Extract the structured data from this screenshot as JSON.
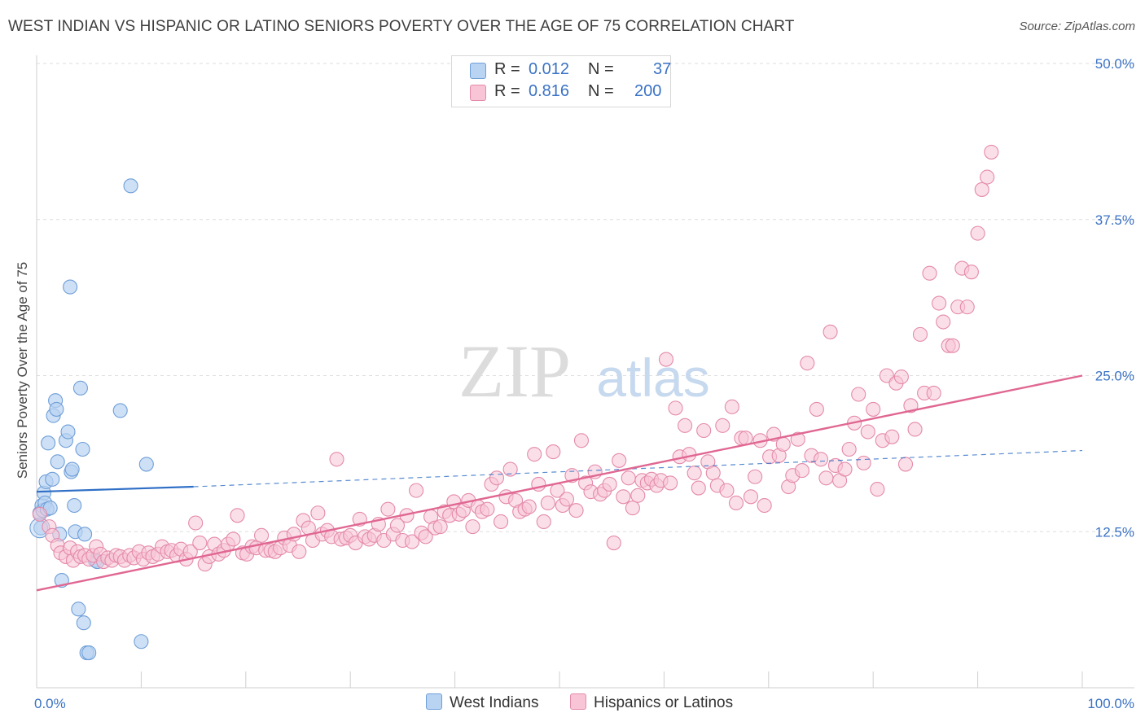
{
  "header": {
    "title": "WEST INDIAN VS HISPANIC OR LATINO SENIORS POVERTY OVER THE AGE OF 75 CORRELATION CHART",
    "source": "Source: ZipAtlas.com"
  },
  "watermark": {
    "zip": "ZIP",
    "atlas": "atlas"
  },
  "legend_top": {
    "rows": [
      {
        "r_label": "R =",
        "r_value": "0.012",
        "n_label": "N =",
        "n_value": "37"
      },
      {
        "r_label": "R =",
        "r_value": "0.816",
        "n_label": "N =",
        "n_value": "200"
      }
    ]
  },
  "chart_data": {
    "type": "scatter",
    "ylabel": "Seniors Poverty Over the Age of 75",
    "xlabel": "",
    "xlim": [
      0,
      100
    ],
    "ylim": [
      0,
      50
    ],
    "x_tick_labels": [
      "0.0%",
      "100.0%"
    ],
    "y_ticks": [
      12.5,
      25.0,
      37.5,
      50.0
    ],
    "y_tick_labels": [
      "12.5%",
      "25.0%",
      "37.5%",
      "50.0%"
    ],
    "grid": true,
    "legend_placement": "bottom-center",
    "colors": {
      "west_indians_fill": "#b9d3f2",
      "west_indians_stroke": "#6f9fd8",
      "west_indians_line": "#2f6fc6",
      "hispanics_fill": "#f8c5d6",
      "hispanics_stroke": "#e48aaa",
      "hispanics_line": "#e06792",
      "axis_label": "#3a72c4"
    },
    "series": [
      {
        "name": "West Indians",
        "r": 0.012,
        "n": 37,
        "trend": {
          "x0": 0,
          "y0": 15.7,
          "x1": 15,
          "y1": 16.1,
          "dashed_to_x": 100,
          "dashed_y1": 19.0
        },
        "points": [
          [
            0.3,
            14.0
          ],
          [
            0.4,
            12.8
          ],
          [
            0.5,
            14.6
          ],
          [
            0.6,
            14.2
          ],
          [
            0.7,
            15.6
          ],
          [
            0.8,
            14.8
          ],
          [
            0.9,
            16.5
          ],
          [
            1.0,
            14.3
          ],
          [
            1.1,
            19.6
          ],
          [
            1.3,
            14.4
          ],
          [
            1.5,
            16.7
          ],
          [
            1.6,
            21.8
          ],
          [
            1.8,
            23.0
          ],
          [
            1.9,
            22.3
          ],
          [
            2.0,
            18.1
          ],
          [
            2.2,
            12.3
          ],
          [
            2.4,
            8.6
          ],
          [
            2.8,
            19.8
          ],
          [
            3.0,
            20.5
          ],
          [
            3.3,
            17.3
          ],
          [
            3.4,
            17.5
          ],
          [
            3.2,
            32.1
          ],
          [
            3.6,
            14.6
          ],
          [
            3.7,
            12.5
          ],
          [
            4.0,
            6.3
          ],
          [
            4.2,
            24.0
          ],
          [
            4.4,
            19.1
          ],
          [
            4.5,
            5.2
          ],
          [
            4.6,
            12.3
          ],
          [
            4.8,
            2.8
          ],
          [
            5.0,
            2.8
          ],
          [
            5.6,
            10.2
          ],
          [
            5.8,
            10.1
          ],
          [
            8.0,
            22.2
          ],
          [
            9.0,
            40.2
          ],
          [
            10.0,
            3.7
          ],
          [
            10.5,
            17.9
          ]
        ]
      },
      {
        "name": "Hispanics or Latinos",
        "r": 0.816,
        "n": 200,
        "trend": {
          "x0": 0,
          "y0": 7.8,
          "x1": 100,
          "y1": 25.0
        },
        "points": [
          [
            0.3,
            13.9
          ],
          [
            1.2,
            12.9
          ],
          [
            1.5,
            12.2
          ],
          [
            2.0,
            11.4
          ],
          [
            2.3,
            10.8
          ],
          [
            2.8,
            10.5
          ],
          [
            3.2,
            11.2
          ],
          [
            3.5,
            10.2
          ],
          [
            3.9,
            10.9
          ],
          [
            4.2,
            10.5
          ],
          [
            4.6,
            10.6
          ],
          [
            5.0,
            10.3
          ],
          [
            5.4,
            10.6
          ],
          [
            5.7,
            11.3
          ],
          [
            6.1,
            10.7
          ],
          [
            6.4,
            10.1
          ],
          [
            6.8,
            10.4
          ],
          [
            7.2,
            10.2
          ],
          [
            7.6,
            10.6
          ],
          [
            8.0,
            10.5
          ],
          [
            8.4,
            10.2
          ],
          [
            8.9,
            10.6
          ],
          [
            9.3,
            10.4
          ],
          [
            9.8,
            10.9
          ],
          [
            10.2,
            10.3
          ],
          [
            10.7,
            10.8
          ],
          [
            11.1,
            10.5
          ],
          [
            11.6,
            10.7
          ],
          [
            12.0,
            11.3
          ],
          [
            12.5,
            10.9
          ],
          [
            12.9,
            11.0
          ],
          [
            13.4,
            10.6
          ],
          [
            13.8,
            11.1
          ],
          [
            14.3,
            10.3
          ],
          [
            14.7,
            10.9
          ],
          [
            15.2,
            13.2
          ],
          [
            15.6,
            11.6
          ],
          [
            16.1,
            9.9
          ],
          [
            16.5,
            10.5
          ],
          [
            17.0,
            11.5
          ],
          [
            17.4,
            10.7
          ],
          [
            17.9,
            11.0
          ],
          [
            18.3,
            11.5
          ],
          [
            18.8,
            11.9
          ],
          [
            19.2,
            13.8
          ],
          [
            19.7,
            10.8
          ],
          [
            20.1,
            10.7
          ],
          [
            20.6,
            11.3
          ],
          [
            21.0,
            11.2
          ],
          [
            21.5,
            12.2
          ],
          [
            21.9,
            11.0
          ],
          [
            22.4,
            11.0
          ],
          [
            22.8,
            10.9
          ],
          [
            23.3,
            11.2
          ],
          [
            23.7,
            12.0
          ],
          [
            24.2,
            11.4
          ],
          [
            24.6,
            12.3
          ],
          [
            25.1,
            10.9
          ],
          [
            25.5,
            13.4
          ],
          [
            26.0,
            12.8
          ],
          [
            26.4,
            11.8
          ],
          [
            26.9,
            14.0
          ],
          [
            27.3,
            12.3
          ],
          [
            27.8,
            12.6
          ],
          [
            28.2,
            12.1
          ],
          [
            28.7,
            18.3
          ],
          [
            29.1,
            11.9
          ],
          [
            29.6,
            12.0
          ],
          [
            30.0,
            12.2
          ],
          [
            30.5,
            11.6
          ],
          [
            30.9,
            13.5
          ],
          [
            31.4,
            12.1
          ],
          [
            31.8,
            11.9
          ],
          [
            32.3,
            12.2
          ],
          [
            32.7,
            13.1
          ],
          [
            33.2,
            11.8
          ],
          [
            33.6,
            14.3
          ],
          [
            34.1,
            12.3
          ],
          [
            34.5,
            13.0
          ],
          [
            35.0,
            11.8
          ],
          [
            35.4,
            13.8
          ],
          [
            35.9,
            11.7
          ],
          [
            36.3,
            15.8
          ],
          [
            36.8,
            12.4
          ],
          [
            37.2,
            12.1
          ],
          [
            37.7,
            13.7
          ],
          [
            38.1,
            12.8
          ],
          [
            38.6,
            12.9
          ],
          [
            39.0,
            14.1
          ],
          [
            39.5,
            13.8
          ],
          [
            39.9,
            14.9
          ],
          [
            40.4,
            13.9
          ],
          [
            40.8,
            14.2
          ],
          [
            41.3,
            15.0
          ],
          [
            41.7,
            12.9
          ],
          [
            42.2,
            14.5
          ],
          [
            42.6,
            14.1
          ],
          [
            43.1,
            14.3
          ],
          [
            43.5,
            16.3
          ],
          [
            44.0,
            16.8
          ],
          [
            44.4,
            13.3
          ],
          [
            44.9,
            15.3
          ],
          [
            45.3,
            17.5
          ],
          [
            45.8,
            15.0
          ],
          [
            46.2,
            14.1
          ],
          [
            46.7,
            14.3
          ],
          [
            47.1,
            14.5
          ],
          [
            47.6,
            18.7
          ],
          [
            48.0,
            16.3
          ],
          [
            48.5,
            13.3
          ],
          [
            48.9,
            14.8
          ],
          [
            49.4,
            18.9
          ],
          [
            49.8,
            15.8
          ],
          [
            50.3,
            14.6
          ],
          [
            50.7,
            15.1
          ],
          [
            51.2,
            17.0
          ],
          [
            51.6,
            14.2
          ],
          [
            52.1,
            19.8
          ],
          [
            52.5,
            16.4
          ],
          [
            53.0,
            15.7
          ],
          [
            53.4,
            17.3
          ],
          [
            53.9,
            15.5
          ],
          [
            54.3,
            15.8
          ],
          [
            54.8,
            16.3
          ],
          [
            55.2,
            11.6
          ],
          [
            55.7,
            18.2
          ],
          [
            56.1,
            15.3
          ],
          [
            56.6,
            16.8
          ],
          [
            57.0,
            14.4
          ],
          [
            57.5,
            15.4
          ],
          [
            57.9,
            16.6
          ],
          [
            58.4,
            16.4
          ],
          [
            58.8,
            16.7
          ],
          [
            59.3,
            16.2
          ],
          [
            59.7,
            16.6
          ],
          [
            60.2,
            26.3
          ],
          [
            60.6,
            16.4
          ],
          [
            61.1,
            22.4
          ],
          [
            61.5,
            18.5
          ],
          [
            62.0,
            21.0
          ],
          [
            62.4,
            18.7
          ],
          [
            62.9,
            17.2
          ],
          [
            63.3,
            16.0
          ],
          [
            63.8,
            20.6
          ],
          [
            64.2,
            18.1
          ],
          [
            64.7,
            17.2
          ],
          [
            65.1,
            16.2
          ],
          [
            65.6,
            21.0
          ],
          [
            66.0,
            15.8
          ],
          [
            66.5,
            22.5
          ],
          [
            66.9,
            14.8
          ],
          [
            67.4,
            20.0
          ],
          [
            67.8,
            20.0
          ],
          [
            68.3,
            15.3
          ],
          [
            68.7,
            16.9
          ],
          [
            69.2,
            19.8
          ],
          [
            69.6,
            14.6
          ],
          [
            70.1,
            18.5
          ],
          [
            70.5,
            20.3
          ],
          [
            71.0,
            18.6
          ],
          [
            71.4,
            19.5
          ],
          [
            71.9,
            16.1
          ],
          [
            72.3,
            17.0
          ],
          [
            72.8,
            19.9
          ],
          [
            73.2,
            17.4
          ],
          [
            73.7,
            26.0
          ],
          [
            74.1,
            18.6
          ],
          [
            74.6,
            22.3
          ],
          [
            75.0,
            18.3
          ],
          [
            75.5,
            16.8
          ],
          [
            75.9,
            28.5
          ],
          [
            76.4,
            17.8
          ],
          [
            76.8,
            16.6
          ],
          [
            77.3,
            17.5
          ],
          [
            77.7,
            19.1
          ],
          [
            78.2,
            21.2
          ],
          [
            78.6,
            23.5
          ],
          [
            79.1,
            18.0
          ],
          [
            79.5,
            20.5
          ],
          [
            80.0,
            22.3
          ],
          [
            80.4,
            15.9
          ],
          [
            80.9,
            19.8
          ],
          [
            81.3,
            25.0
          ],
          [
            81.8,
            20.1
          ],
          [
            82.2,
            24.4
          ],
          [
            82.7,
            24.9
          ],
          [
            83.1,
            17.9
          ],
          [
            83.6,
            22.6
          ],
          [
            84.0,
            20.7
          ],
          [
            84.5,
            28.3
          ],
          [
            84.9,
            23.6
          ],
          [
            85.4,
            33.2
          ],
          [
            85.8,
            23.6
          ],
          [
            86.3,
            30.8
          ],
          [
            86.7,
            29.3
          ],
          [
            87.2,
            27.4
          ],
          [
            87.6,
            27.4
          ],
          [
            88.1,
            30.5
          ],
          [
            88.5,
            33.6
          ],
          [
            89.0,
            30.5
          ],
          [
            89.4,
            33.3
          ],
          [
            90.0,
            36.4
          ],
          [
            90.4,
            39.9
          ],
          [
            90.9,
            40.9
          ],
          [
            91.3,
            42.9
          ]
        ]
      }
    ]
  },
  "legend_bottom": {
    "items": [
      "West Indians",
      "Hispanics or Latinos"
    ]
  }
}
